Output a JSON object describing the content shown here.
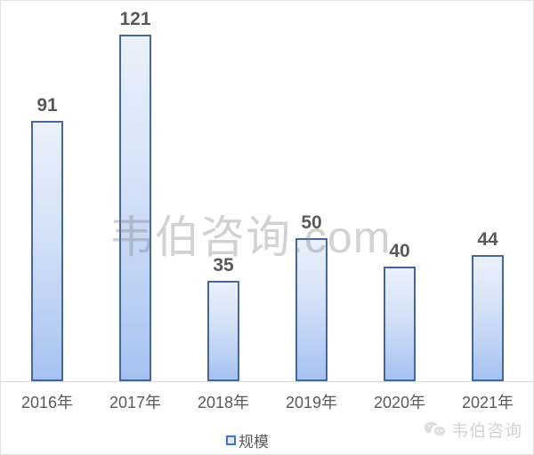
{
  "chart_data": {
    "type": "bar",
    "title": "",
    "categories": [
      "2016年",
      "2017年",
      "2018年",
      "2019年",
      "2020年",
      "2021年"
    ],
    "values": [
      91,
      121,
      35,
      50,
      40,
      44
    ],
    "series_name": "规模",
    "xlabel": "",
    "ylabel": "",
    "ylim": [
      0,
      130
    ],
    "grid": false,
    "legend_position": "bottom-center",
    "data_labels": true,
    "colors": {
      "bar_fill_top": "#EAF1FB",
      "bar_fill_bottom": "#A6C2F1",
      "bar_border": "#44679C",
      "value_label": "#595959",
      "axis_line": "#D9D9D9",
      "legend_swatch_border": "#4472C4",
      "legend_swatch_fill": "#DCE9F8"
    }
  },
  "legend": {
    "label": "规模"
  },
  "watermarks": {
    "center": "韦伯咨询.com",
    "bottom_right": "韦伯咨询",
    "bottom_right_icon": "wechat-icon",
    "center_color": "#D5D5D5",
    "bottom_right_color": "#D3D3D3"
  }
}
